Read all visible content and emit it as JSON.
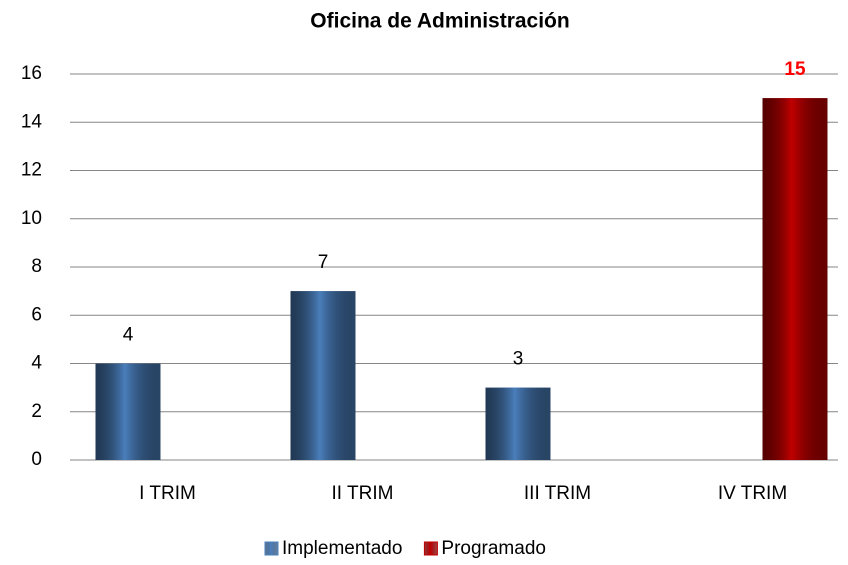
{
  "chart_data": {
    "type": "bar",
    "title": "Oficina de Administración",
    "categories": [
      "I TRIM",
      "II TRIM",
      "III TRIM",
      "IV TRIM"
    ],
    "series": [
      {
        "name": "Implementado",
        "color": "#4a7ebb",
        "label_color": "#000000",
        "values": [
          4,
          7,
          3,
          null
        ]
      },
      {
        "name": "Programado",
        "color": "#c00000",
        "label_color": "#ff0000",
        "values": [
          null,
          null,
          null,
          15
        ]
      }
    ],
    "ylim": [
      0,
      16
    ],
    "yticks": [
      0,
      2,
      4,
      6,
      8,
      10,
      12,
      14,
      16
    ],
    "grid": true,
    "legend": "bottom"
  }
}
